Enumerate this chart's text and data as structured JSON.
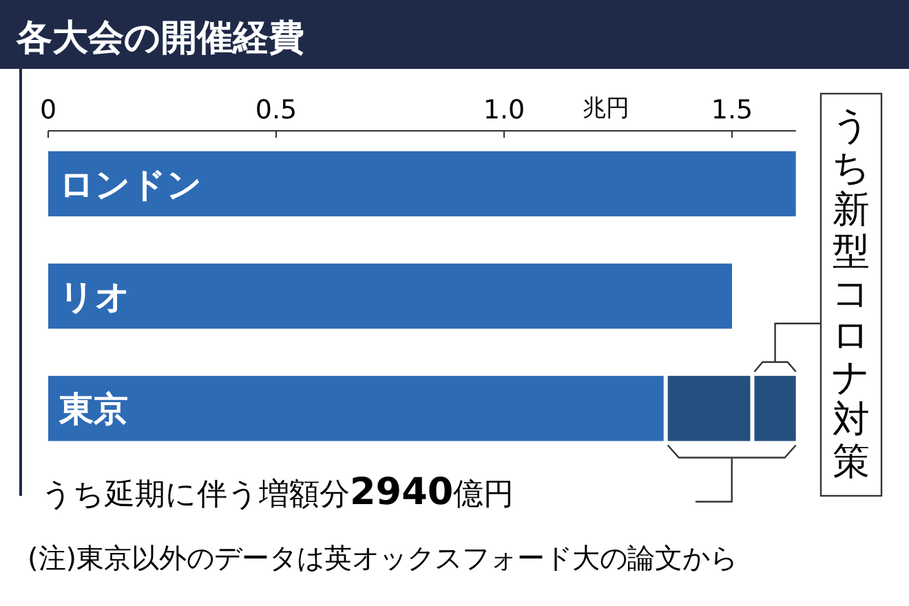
{
  "chart_data": {
    "type": "bar",
    "orientation": "horizontal",
    "stacked": true,
    "title": "各大会の開催経費",
    "xlabel": "兆円",
    "categories": [
      "ロンドン",
      "リオ",
      "東京"
    ],
    "series": [
      {
        "color": "#2e6bb5",
        "values": [
          1.64,
          1.5,
          1.35
        ]
      },
      {
        "color": "#24507f",
        "values": [
          null,
          null,
          0.19
        ]
      },
      {
        "color": "#24507f",
        "values": [
          null,
          null,
          0.1
        ]
      }
    ],
    "xlim": [
      0,
      1.64
    ],
    "xticks": [
      0,
      0.5,
      {
        "value": 1,
        "label": "1.0"
      },
      1.5
    ],
    "grid": false,
    "annotations": [
      "うち新型コロナ対策",
      "うち延期に伴う増額分2940億円",
      "(注)東京以外のデータは英オックスフォード大の論文から"
    ]
  }
}
